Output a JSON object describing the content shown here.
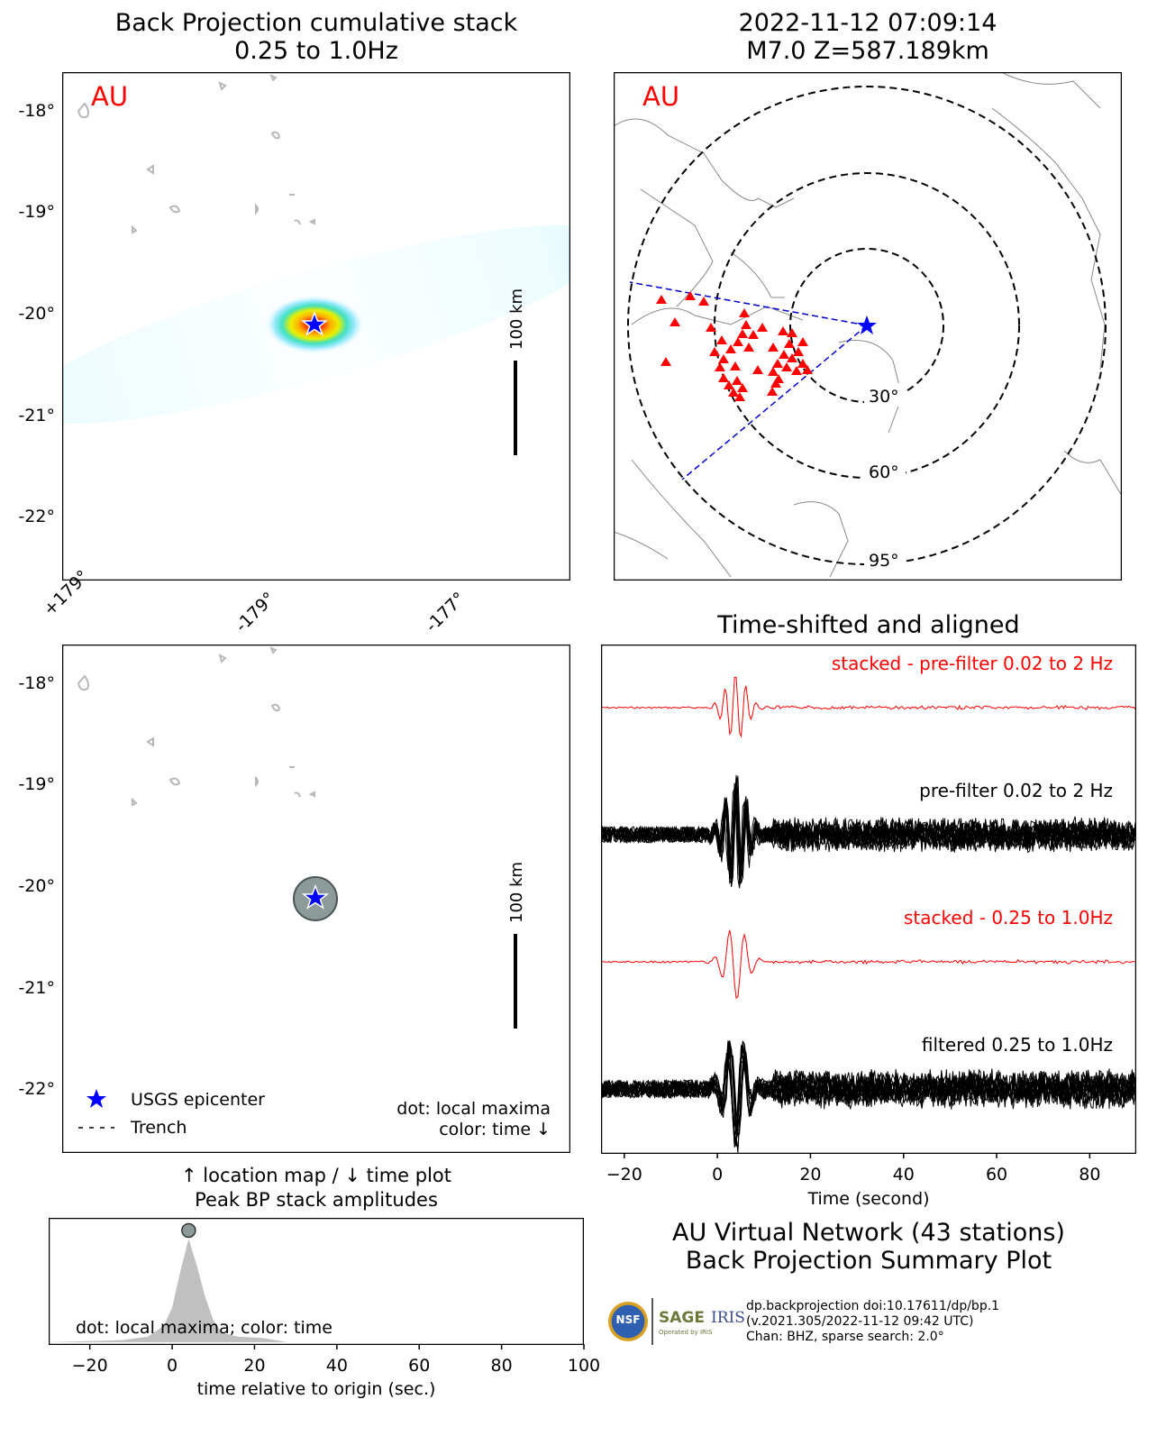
{
  "bp_map": {
    "title_line1": "Back Projection cumulative stack",
    "title_line2": "0.25 to 1.0Hz",
    "network_label": "AU",
    "lat_ticks": [
      "-18°",
      "-19°",
      "-20°",
      "-21°",
      "-22°"
    ],
    "lon_ticks": [
      "+179°",
      "-179°",
      "-177°"
    ],
    "scale_label": "100 km",
    "hotspot": {
      "lat": -20.12,
      "lon": -178.6
    }
  },
  "station_map": {
    "title_line1": "2022-11-12 07:09:14",
    "title_line2": "M7.0 Z=587.189km",
    "network_label": "AU",
    "ring_labels": [
      "30°",
      "60°",
      "95°"
    ],
    "colors": {
      "stations": "#ff0000",
      "epicenter": "#0000ff",
      "azimuth_lines": "#0000cc"
    }
  },
  "time_map": {
    "lat_ticks": [
      "-18°",
      "-19°",
      "-20°",
      "-21°",
      "-22°"
    ],
    "scale_label": "100 km",
    "legend": {
      "epicenter": "USGS epicenter",
      "trench": "Trench"
    },
    "note_line1": "dot: local maxima",
    "note_line2": "color: time ↓"
  },
  "caption": {
    "line1": "↑ location map / ↓ time plot",
    "line2": "Peak BP stack amplitudes"
  },
  "waveforms": {
    "title": "Time-shifted and aligned",
    "xlabel": "Time (second)",
    "labels": {
      "stacked_prefilter": "stacked - pre-filter 0.02 to 2 Hz",
      "prefilter": "pre-filter 0.02 to 2 Hz",
      "stacked_filtered": "stacked - 0.25 to 1.0Hz",
      "filtered": "filtered 0.25 to 1.0Hz"
    }
  },
  "summary": {
    "line1": "AU Virtual Network (43 stations)",
    "line2": "Back Projection Summary Plot",
    "logo_nsf": "NSF",
    "logo_sage": "SAGE",
    "logo_sage_sub": "Operated by IRIS",
    "logo_iris": "IRIS",
    "info1": "dp.backprojection doi:10.17611/dp/bp.1",
    "info2": "(v.2021.305/2022-11-12 09:42 UTC)",
    "info3": "Chan: BHZ, sparse search: 2.0°"
  },
  "chart_data": [
    {
      "type": "line",
      "title": "Time-shifted and aligned",
      "xlabel": "Time (second)",
      "xlim": [
        -25,
        90
      ],
      "x_ticks": [
        -20,
        0,
        20,
        40,
        60,
        80
      ],
      "series": [
        {
          "name": "stacked - pre-filter 0.02 to 2 Hz",
          "color": "#ff0000"
        },
        {
          "name": "pre-filter 0.02 to 2 Hz",
          "color": "#000000"
        },
        {
          "name": "stacked - 0.25 to 1.0Hz",
          "color": "#ff0000"
        },
        {
          "name": "filtered 0.25 to 1.0Hz",
          "color": "#000000"
        }
      ]
    },
    {
      "type": "area",
      "xlabel": "time relative to origin (sec.)",
      "annotation": "dot: local maxima; color: time",
      "xlim": [
        -30,
        100
      ],
      "x_ticks": [
        -20,
        0,
        20,
        40,
        60,
        80,
        100
      ],
      "peak": {
        "x": 4,
        "y": 1.0
      },
      "x": [
        -30,
        -12,
        -6,
        -2,
        0,
        2,
        4,
        6,
        8,
        10,
        12,
        16,
        22,
        28,
        100
      ],
      "y": [
        0.0,
        0.02,
        0.05,
        0.15,
        0.32,
        0.65,
        0.95,
        0.7,
        0.42,
        0.2,
        0.09,
        0.05,
        0.04,
        0.0,
        0.0
      ]
    }
  ]
}
